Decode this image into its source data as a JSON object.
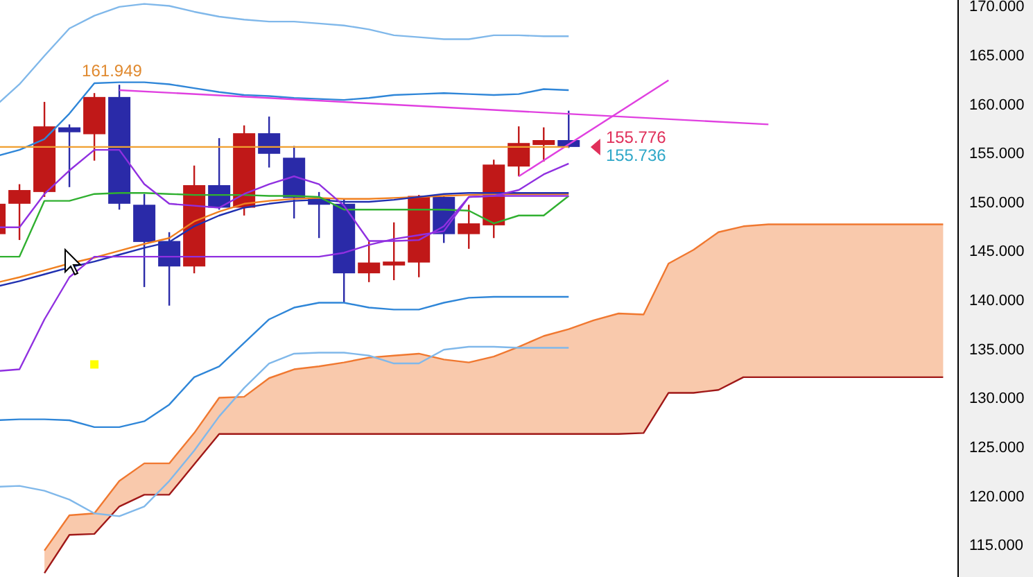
{
  "chart_data": {
    "type": "candlestick",
    "categories": [
      null,
      null,
      null,
      null,
      null,
      null,
      null,
      null,
      null,
      null,
      null,
      null,
      null,
      null,
      null,
      null,
      null,
      null,
      null,
      null,
      null,
      null,
      null,
      null,
      null,
      null,
      null,
      null,
      null,
      null,
      null,
      null,
      null,
      null,
      null,
      null,
      null,
      null,
      null
    ],
    "ohlc": [
      [
        146.7,
        150.0,
        146.5,
        149.8
      ],
      [
        149.8,
        151.8,
        146.1,
        151.2
      ],
      [
        151.0,
        160.2,
        150.5,
        157.7
      ],
      [
        157.6,
        157.9,
        151.5,
        157.1
      ],
      [
        156.9,
        161.1,
        154.2,
        160.7
      ],
      [
        160.7,
        161.949,
        149.2,
        149.8
      ],
      [
        149.7,
        150.8,
        141.3,
        145.9
      ],
      [
        146.0,
        146.9,
        139.4,
        143.4
      ],
      [
        143.4,
        153.7,
        142.7,
        151.7
      ],
      [
        151.7,
        156.5,
        149.2,
        149.4
      ],
      [
        149.4,
        157.8,
        148.6,
        157.0
      ],
      [
        157.0,
        158.7,
        153.5,
        154.9
      ],
      [
        154.5,
        155.7,
        148.3,
        150.4
      ],
      [
        150.4,
        151.0,
        146.3,
        149.7
      ],
      [
        149.8,
        150.3,
        139.7,
        142.7
      ],
      [
        142.7,
        146.1,
        141.8,
        143.8
      ],
      [
        143.5,
        147.9,
        142.0,
        143.9
      ],
      [
        143.8,
        150.7,
        142.3,
        150.6
      ],
      [
        150.5,
        150.6,
        145.8,
        146.7
      ],
      [
        146.7,
        149.7,
        145.2,
        147.8
      ],
      [
        147.6,
        154.3,
        146.3,
        153.8
      ],
      [
        153.6,
        157.7,
        152.6,
        156.0
      ],
      [
        155.8,
        157.6,
        154.1,
        156.3
      ],
      [
        156.3,
        159.3,
        155.5,
        155.6
      ],
      null,
      null,
      null,
      null,
      null,
      null,
      null,
      null,
      null,
      null,
      null,
      null,
      null,
      null,
      null
    ],
    "colors": [
      "#c01818",
      "#c01818",
      "#c01818",
      "#2a2aa8",
      "#c01818",
      "#2a2aa8",
      "#2a2aa8",
      "#2a2aa8",
      "#c01818",
      "#2a2aa8",
      "#c01818",
      "#2a2aa8",
      "#2a2aa8",
      "#2a2aa8",
      "#2a2aa8",
      "#c01818",
      "#c01818",
      "#c01818",
      "#2a2aa8",
      "#c01818",
      "#c01818",
      "#c01818",
      "#c01818",
      "#2a2aa8",
      null,
      null,
      null,
      null,
      null,
      null,
      null,
      null,
      null,
      null,
      null,
      null,
      null,
      null,
      null
    ],
    "series": [
      {
        "type": "line",
        "color": "#f07830",
        "values": [
          null,
          null,
          114.4,
          118.0,
          118.2,
          121.5,
          123.3,
          123.3,
          126.4,
          130.0,
          130.1,
          132.0,
          132.9,
          133.2,
          133.6,
          134.1,
          134.3,
          134.5,
          133.9,
          133.6,
          134.2,
          135.2,
          136.3,
          137.0,
          137.9,
          138.6,
          138.5,
          143.7,
          145.1,
          146.9,
          147.5,
          147.7,
          147.7,
          147.7,
          147.7,
          147.7,
          147.7,
          147.7,
          147.7
        ],
        "upper": [
          null,
          null,
          114.4,
          118.0,
          118.2,
          121.5,
          123.3,
          123.3,
          126.4,
          130.0,
          130.1,
          132.0,
          132.9,
          133.2,
          133.6,
          134.1,
          134.3,
          134.5,
          133.9,
          133.6,
          134.2,
          135.2,
          136.3,
          137.0,
          137.9,
          138.6,
          138.5,
          143.7,
          145.1,
          146.9,
          147.5,
          147.7,
          147.7,
          147.7,
          147.7,
          147.7,
          147.7,
          147.7,
          147.7
        ],
        "lower": [
          null,
          null,
          112.1,
          116.0,
          116.1,
          118.9,
          120.1,
          120.1,
          123.2,
          126.3,
          126.3,
          126.3,
          126.3,
          126.3,
          126.3,
          126.3,
          126.3,
          126.3,
          126.3,
          126.3,
          126.3,
          126.3,
          126.3,
          126.3,
          126.3,
          126.3,
          126.4,
          130.5,
          130.5,
          130.8,
          132.1,
          132.1,
          132.1,
          132.1,
          132.1,
          132.1,
          132.1,
          132.1,
          132.1
        ]
      },
      {
        "type": "line",
        "color": "#a01818",
        "values": [
          null,
          null,
          112.1,
          116.0,
          116.1,
          118.9,
          120.1,
          120.1,
          123.2,
          126.3,
          126.3,
          126.3,
          126.3,
          126.3,
          126.3,
          126.3,
          126.3,
          126.3,
          126.3,
          126.3,
          126.3,
          126.3,
          126.3,
          126.3,
          126.3,
          126.3,
          126.4,
          130.5,
          130.5,
          130.8,
          132.1,
          132.1,
          132.1,
          132.1,
          132.1,
          132.1,
          132.1,
          132.1,
          132.1
        ]
      },
      {
        "type": "line",
        "color": "#80b8ea",
        "values": [
          159.7,
          162.0,
          164.9,
          167.7,
          169.0,
          169.9,
          170.2,
          170.0,
          169.4,
          168.9,
          168.6,
          168.4,
          168.4,
          168.2,
          168.0,
          167.6,
          167.0,
          166.8,
          166.6,
          166.6,
          167.0,
          167.0,
          166.9,
          166.9,
          null,
          null,
          null,
          null,
          null,
          null,
          null,
          null,
          null,
          null,
          null,
          null,
          null,
          null,
          null
        ]
      },
      {
        "type": "line",
        "color": "#2f86d8",
        "values": [
          154.6,
          155.3,
          156.4,
          159.0,
          162.1,
          162.2,
          162.2,
          162.0,
          161.6,
          161.2,
          160.9,
          160.8,
          160.6,
          160.5,
          160.4,
          160.6,
          160.9,
          161.0,
          161.1,
          161.0,
          160.9,
          161.0,
          161.5,
          161.4,
          null,
          null,
          null,
          null,
          null,
          null,
          null,
          null,
          null,
          null,
          null,
          null,
          null,
          null,
          null
        ]
      },
      {
        "type": "line",
        "color": "#2f86d8",
        "values": [
          127.7,
          127.8,
          127.8,
          127.7,
          127.0,
          127.0,
          127.6,
          129.3,
          132.1,
          133.2,
          135.6,
          138.0,
          139.2,
          139.7,
          139.7,
          139.2,
          139.0,
          139.0,
          139.7,
          140.2,
          140.3,
          140.3,
          140.3,
          140.3,
          null,
          null,
          null,
          null,
          null,
          null,
          null,
          null,
          null,
          null,
          null,
          null,
          null,
          null,
          null
        ]
      },
      {
        "type": "line",
        "color": "#80b8ea",
        "values": [
          120.9,
          121.0,
          120.5,
          119.6,
          118.2,
          117.9,
          118.9,
          121.5,
          124.6,
          128.1,
          131.0,
          133.5,
          134.5,
          134.6,
          134.6,
          134.3,
          133.5,
          133.5,
          134.9,
          135.2,
          135.2,
          135.1,
          135.1,
          135.1,
          null,
          null,
          null,
          null,
          null,
          null,
          null,
          null,
          null,
          null,
          null,
          null,
          null,
          null,
          null
        ]
      },
      {
        "type": "line",
        "color": "#f08020",
        "values": [
          141.7,
          142.3,
          143.0,
          143.7,
          144.3,
          145.0,
          145.7,
          146.3,
          148.0,
          149.0,
          149.8,
          150.1,
          150.3,
          150.4,
          150.3,
          150.3,
          150.4,
          150.5,
          150.6,
          150.7,
          150.8,
          150.8,
          150.8,
          150.8,
          null,
          null,
          null,
          null,
          null,
          null,
          null,
          null,
          null,
          null,
          null,
          null,
          null,
          null,
          null
        ]
      },
      {
        "type": "line",
        "color": "#2030b0",
        "values": [
          141.3,
          141.9,
          142.6,
          143.3,
          143.9,
          144.6,
          145.3,
          145.9,
          147.5,
          148.6,
          149.4,
          149.8,
          150.1,
          150.2,
          150.0,
          150.0,
          150.2,
          150.5,
          150.8,
          150.9,
          150.9,
          150.9,
          150.9,
          150.9,
          null,
          null,
          null,
          null,
          null,
          null,
          null,
          null,
          null,
          null,
          null,
          null,
          null,
          null,
          null
        ]
      },
      {
        "type": "line",
        "color": "#30b030",
        "values": [
          144.4,
          144.4,
          150.1,
          150.1,
          150.8,
          150.9,
          150.9,
          150.8,
          150.7,
          150.7,
          150.7,
          150.6,
          150.6,
          150.5,
          149.2,
          149.2,
          149.2,
          149.2,
          149.2,
          149.1,
          147.8,
          148.6,
          148.6,
          150.6,
          null,
          null,
          null,
          null,
          null,
          null,
          null,
          null,
          null,
          null,
          null,
          null,
          null,
          null,
          null
        ]
      },
      {
        "type": "line",
        "color": "#9030e0",
        "values": [
          132.7,
          132.9,
          138.0,
          142.3,
          144.4,
          144.4,
          144.4,
          144.4,
          144.4,
          144.4,
          144.4,
          144.4,
          144.4,
          144.4,
          144.8,
          145.6,
          146.2,
          146.6,
          147.0,
          150.5,
          150.6,
          151.2,
          152.8,
          153.9,
          null,
          null,
          null,
          null,
          null,
          null,
          null,
          null,
          null,
          null,
          null,
          null,
          null,
          null,
          null
        ]
      },
      {
        "type": "line",
        "color": "#9030e0",
        "values": [
          147.4,
          147.4,
          150.8,
          153.2,
          155.3,
          155.3,
          151.8,
          149.8,
          149.6,
          149.4,
          150.8,
          151.8,
          152.6,
          151.8,
          149.6,
          146.0,
          146.0,
          146.1,
          147.5,
          150.5,
          150.6,
          150.6,
          150.6,
          150.6,
          null,
          null,
          null,
          null,
          null,
          null,
          null,
          null,
          null,
          null,
          null,
          null,
          null,
          null,
          null
        ]
      },
      {
        "type": "line",
        "color": "#e040e0",
        "values": [
          null,
          null,
          null,
          null,
          null,
          161.4,
          null,
          null,
          null,
          null,
          null,
          null,
          null,
          null,
          null,
          null,
          null,
          null,
          null,
          null,
          null,
          null,
          null,
          null,
          null,
          null,
          null,
          null,
          null,
          null,
          null,
          157.9,
          null,
          null,
          null,
          null,
          null,
          null,
          null
        ]
      },
      {
        "type": "line",
        "color": "#e040e0",
        "values": [
          null,
          null,
          null,
          null,
          null,
          null,
          null,
          null,
          null,
          null,
          null,
          null,
          null,
          null,
          null,
          null,
          null,
          null,
          null,
          null,
          null,
          152.6,
          null,
          null,
          null,
          null,
          null,
          162.4,
          null,
          null,
          null,
          null,
          null,
          null,
          null,
          null,
          null,
          null,
          null
        ]
      },
      {
        "type": "scatter",
        "color": "#ffff00",
        "marker": "square",
        "values": [
          null,
          null,
          null,
          null,
          133.4,
          null,
          null,
          null,
          null,
          null,
          null,
          null,
          null,
          null,
          null,
          null,
          null,
          null,
          null,
          null,
          null,
          null,
          null,
          null,
          null,
          null,
          null,
          null,
          null,
          null,
          null,
          null,
          null,
          null,
          null,
          null,
          null,
          null,
          null
        ]
      }
    ],
    "ylim": [
      111.7,
      170.6
    ],
    "yticks": [
      {
        "value": 115,
        "label": "115.000"
      },
      {
        "value": 120,
        "label": "120.000"
      },
      {
        "value": 125,
        "label": "125.000"
      },
      {
        "value": 130,
        "label": "130.000"
      },
      {
        "value": 135,
        "label": "135.000"
      },
      {
        "value": 140,
        "label": "140.000"
      },
      {
        "value": 145,
        "label": "145.000"
      },
      {
        "value": 150,
        "label": "150.000"
      },
      {
        "value": 155,
        "label": "155.000"
      },
      {
        "value": 160,
        "label": "160.000"
      },
      {
        "value": 165,
        "label": "165.000"
      },
      {
        "value": 170,
        "label": "170.000"
      }
    ],
    "tick_labels": "y",
    "ref_lines": [
      {
        "axis": "y",
        "value": 155.6,
        "color": "#f0a030"
      }
    ],
    "annotations": [
      {
        "text": "161.949",
        "y": 161.949
      },
      "155.776",
      "155.736"
    ]
  }
}
